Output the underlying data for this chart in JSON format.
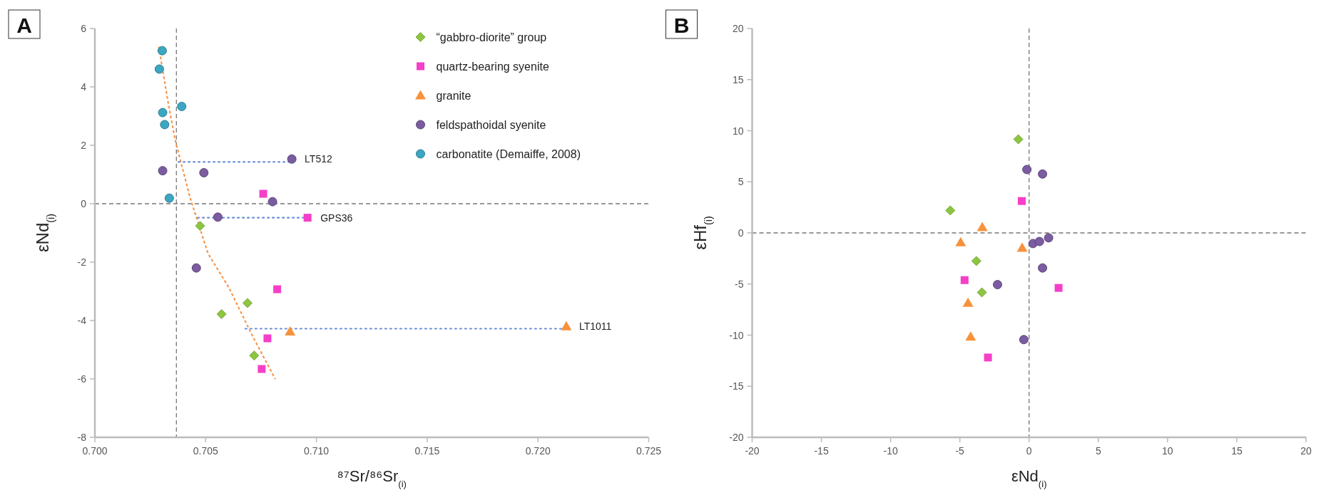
{
  "chart_data": [
    {
      "type": "scatter",
      "title": "A",
      "xlabel": "⁸⁷Sr/⁸⁶Sr$_{(i)}$",
      "ylabel": "εNd$_{(i)}$",
      "xlim": [
        0.7,
        0.725
      ],
      "xticks": [
        {
          "value": 0.7,
          "label": "0.700"
        },
        {
          "value": 0.705,
          "label": "0.705"
        },
        {
          "value": 0.71,
          "label": "0.710"
        },
        {
          "value": 0.715,
          "label": "0.715"
        },
        {
          "value": 0.72,
          "label": "0.720"
        },
        {
          "value": 0.725,
          "label": "0.725"
        }
      ],
      "ylim": [
        -8,
        6
      ],
      "yticks": [
        -8,
        -6,
        -4,
        -2,
        0,
        2,
        4,
        6
      ],
      "grid": false,
      "legend": "top right",
      "ref_lines": [
        {
          "axis": "x",
          "value": 0.70368,
          "color": "#777777",
          "line_style": "dashed"
        },
        {
          "axis": "y",
          "value": 0,
          "color": "#777777",
          "line_style": "dashed"
        }
      ],
      "annotations": [
        {
          "text": "LT512",
          "x": 0.70889,
          "y": 1.53
        },
        {
          "text": "GPS36",
          "x": 0.7096,
          "y": -0.48
        },
        {
          "text": "LT1011",
          "x": 0.72128,
          "y": -4.2
        }
      ],
      "series": [
        {
          "type": "line",
          "color": "#f7944a",
          "line_style": "dotted",
          "x": [
            0.70289,
            0.7033,
            0.70362,
            0.7043,
            0.70511,
            0.70604,
            0.70709,
            0.70813
          ],
          "values": [
            5.35,
            3.5,
            2.2,
            0.2,
            -1.71,
            -2.86,
            -4.49,
            -5.99
          ]
        },
        {
          "type": "line",
          "color": "#6a8fd6",
          "line_style": "dotted",
          "x": [
            0.70377,
            0.70889
          ],
          "values": [
            1.43,
            1.43
          ]
        },
        {
          "type": "line",
          "color": "#6a8fd6",
          "line_style": "dotted",
          "x": [
            0.70464,
            0.7096
          ],
          "values": [
            -0.48,
            -0.48
          ]
        },
        {
          "type": "line",
          "color": "#6a8fd6",
          "line_style": "dotted",
          "x": [
            0.70679,
            0.72128
          ],
          "values": [
            -4.28,
            -4.28
          ]
        },
        {
          "name": "“gabbro-diorite” group",
          "color": "#8cc63f",
          "marker": "diamond",
          "x": [
            0.70475,
            0.70572,
            0.70689,
            0.70719
          ],
          "values": [
            -0.76,
            -3.78,
            -3.4,
            -5.2
          ]
        },
        {
          "name": "quartz-bearing syenite",
          "color": "#f53fc8",
          "marker": "square",
          "x": [
            0.7076,
            0.7096,
            0.70823,
            0.70779,
            0.70753
          ],
          "values": [
            0.34,
            -0.48,
            -2.93,
            -4.61,
            -5.66
          ]
        },
        {
          "name": "granite",
          "color": "#f7923a",
          "marker": "triangle",
          "x": [
            0.70881,
            0.72128
          ],
          "values": [
            -4.38,
            -4.2
          ]
        },
        {
          "name": "feldspathoidal syenite",
          "color": "#7b5ca0",
          "marker": "circle",
          "x": [
            0.70306,
            0.70492,
            0.70889,
            0.70802,
            0.70555,
            0.70458
          ],
          "values": [
            1.13,
            1.06,
            1.53,
            0.07,
            -0.46,
            -2.2
          ]
        },
        {
          "name": "carbonatite (Demaiffe, 2008)",
          "color": "#3ba7c2",
          "marker": "circle",
          "x": [
            0.70304,
            0.70291,
            0.70306,
            0.70315,
            0.70392,
            0.70336
          ],
          "values": [
            5.24,
            4.61,
            3.12,
            2.71,
            3.33,
            0.19
          ]
        }
      ]
    },
    {
      "type": "scatter",
      "title": "B",
      "xlabel": "εNd$_{(i)}$",
      "ylabel": "εHf$_{(i)}$",
      "xlim": [
        -20,
        20
      ],
      "xticks": [
        -20,
        -15,
        -10,
        -5,
        0,
        5,
        10,
        15,
        20
      ],
      "ylim": [
        -20,
        20
      ],
      "yticks": [
        -20,
        -15,
        -10,
        -5,
        0,
        5,
        10,
        15,
        20
      ],
      "grid": false,
      "ref_lines": [
        {
          "axis": "x",
          "value": 0,
          "color": "#777777",
          "line_style": "dashed"
        },
        {
          "axis": "y",
          "value": 0,
          "color": "#777777",
          "line_style": "dashed"
        }
      ],
      "series": [
        {
          "color": "#8cc63f",
          "marker": "diamond",
          "x": [
            -0.78,
            -5.69,
            -3.81,
            -3.41
          ],
          "values": [
            9.16,
            2.2,
            -2.75,
            -5.82
          ]
        },
        {
          "color": "#f53fc8",
          "marker": "square",
          "x": [
            -0.53,
            -4.66,
            2.13,
            -2.97
          ],
          "values": [
            3.12,
            -4.62,
            -5.38,
            -12.19
          ]
        },
        {
          "color": "#f7923a",
          "marker": "triangle",
          "x": [
            -3.38,
            -4.94,
            -0.5,
            -4.41,
            -4.22
          ],
          "values": [
            0.56,
            -0.92,
            -1.47,
            -6.85,
            -10.16
          ]
        },
        {
          "color": "#7b5ca0",
          "marker": "circle",
          "x": [
            -0.16,
            0.97,
            0.28,
            0.75,
            1.41,
            0.97,
            -2.28,
            -0.38
          ],
          "values": [
            6.2,
            5.76,
            -1.04,
            -0.84,
            -0.48,
            -3.43,
            -5.06,
            -10.44
          ]
        }
      ]
    }
  ]
}
